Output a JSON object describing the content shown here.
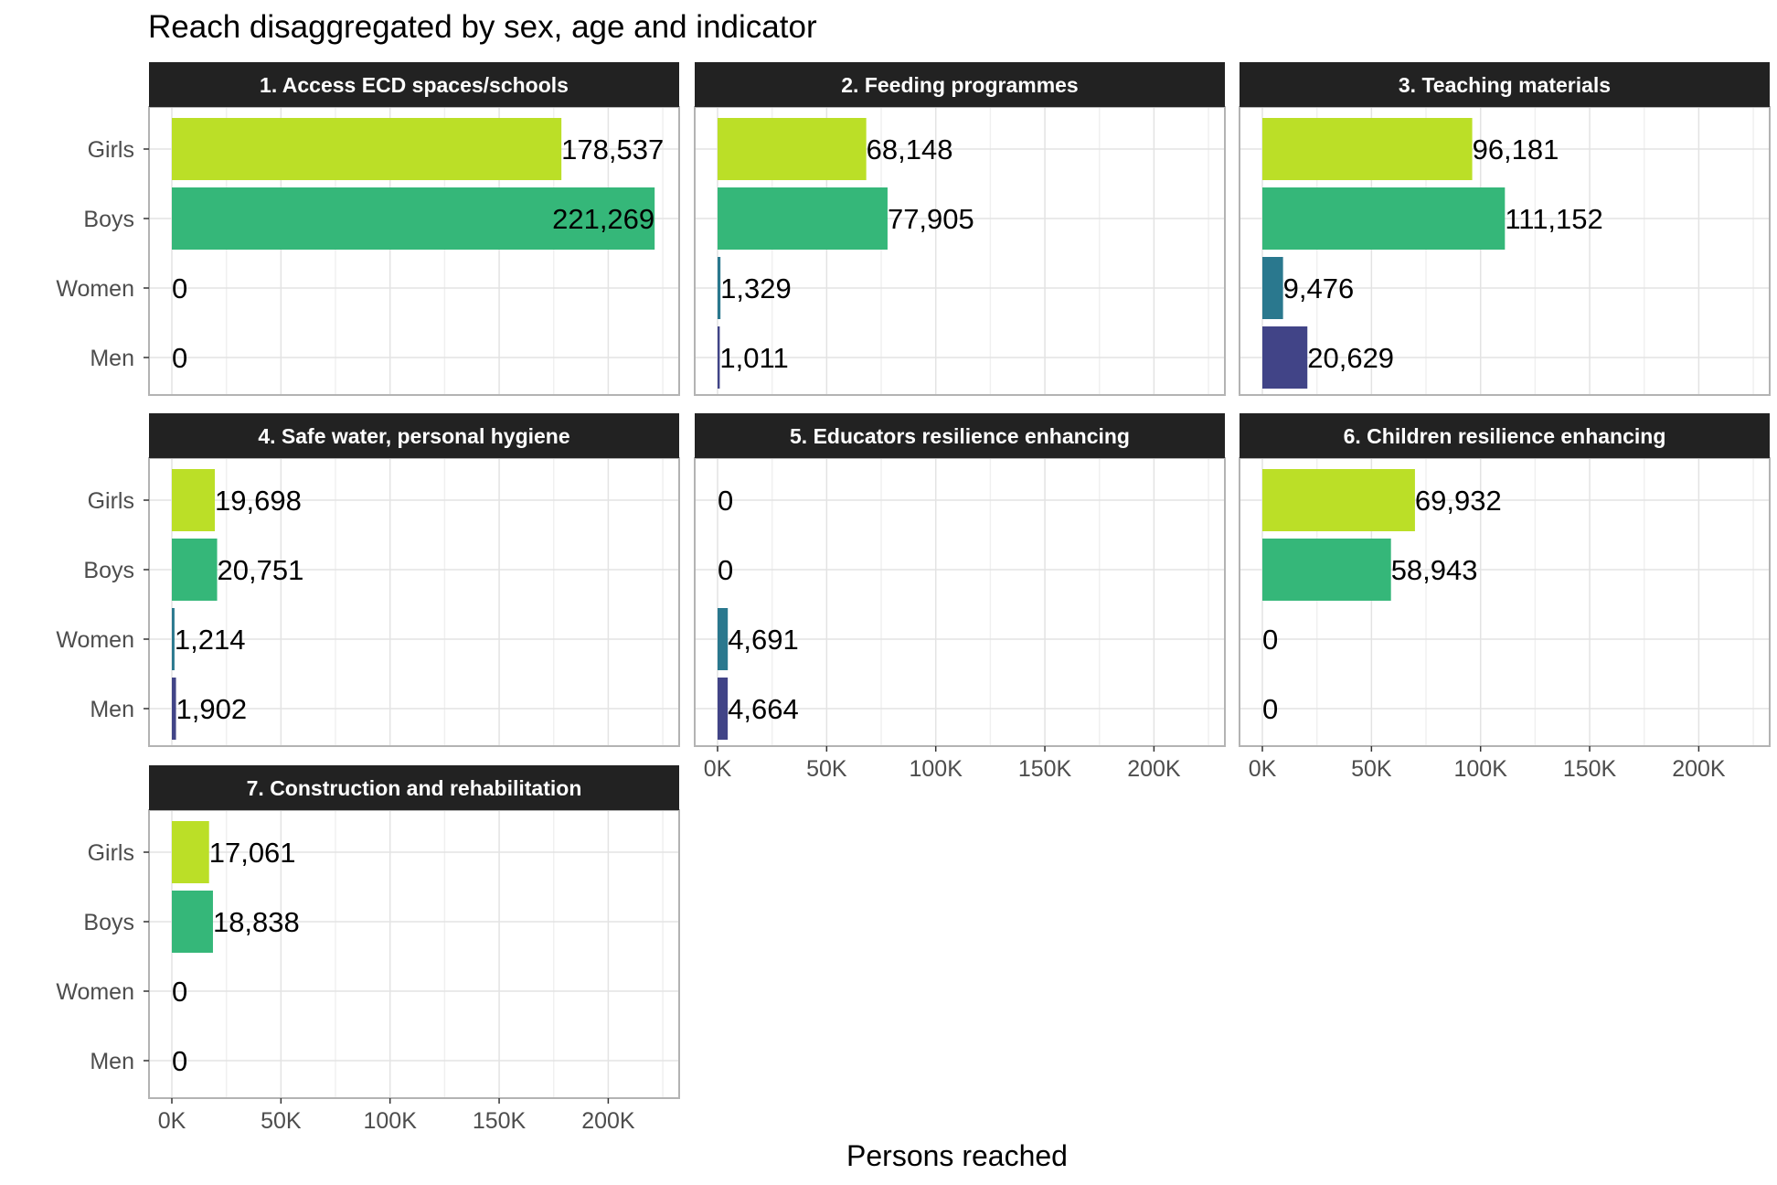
{
  "chart_data": {
    "type": "bar",
    "orientation": "horizontal",
    "title": "Reach disaggregated by sex, age and indicator",
    "xlabel": "Persons reached",
    "categories": [
      "Girls",
      "Boys",
      "Women",
      "Men"
    ],
    "xlim": [
      0,
      230000
    ],
    "x_ticks": [
      0,
      50000,
      100000,
      150000,
      200000
    ],
    "x_tick_labels": [
      "0K",
      "50K",
      "100K",
      "150K",
      "200K"
    ],
    "grid": true,
    "colors": {
      "Girls": "#bbdf27",
      "Boys": "#35b779",
      "Women": "#2a788e",
      "Men": "#414487"
    },
    "strip_color": "#222222",
    "panels": [
      {
        "title": "1. Access ECD spaces/schools",
        "values": [
          178537,
          221269,
          0,
          0
        ],
        "labels": [
          "178,537",
          "221,269",
          "0",
          "0"
        ]
      },
      {
        "title": "2. Feeding programmes",
        "values": [
          68148,
          77905,
          1329,
          1011
        ],
        "labels": [
          "68,148",
          "77,905",
          "1,329",
          "1,011"
        ]
      },
      {
        "title": "3. Teaching materials",
        "values": [
          96181,
          111152,
          9476,
          20629
        ],
        "labels": [
          "96,181",
          "111,152",
          "9,476",
          "20,629"
        ]
      },
      {
        "title": "4. Safe water, personal hygiene",
        "values": [
          19698,
          20751,
          1214,
          1902
        ],
        "labels": [
          "19,698",
          "20,751",
          "1,214",
          "1,902"
        ]
      },
      {
        "title": "5. Educators resilience enhancing",
        "values": [
          0,
          0,
          4691,
          4664
        ],
        "labels": [
          "0",
          "0",
          "4,691",
          "4,664"
        ]
      },
      {
        "title": "6. Children resilience enhancing",
        "values": [
          69932,
          58943,
          0,
          0
        ],
        "labels": [
          "69,932",
          "58,943",
          "0",
          "0"
        ]
      },
      {
        "title": "7. Construction and rehabilitation",
        "values": [
          17061,
          18838,
          0,
          0
        ],
        "labels": [
          "17,061",
          "18,838",
          "0",
          "0"
        ]
      }
    ]
  }
}
